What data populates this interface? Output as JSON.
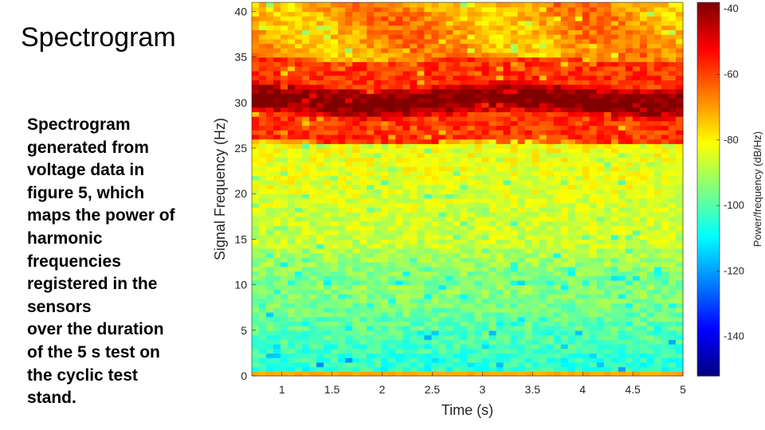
{
  "slide": {
    "title": "Spectrogram",
    "caption_lines": [
      "Spectrogram",
      "generated from",
      "voltage data in",
      "figure 5, which",
      "maps the power of",
      "harmonic",
      "frequencies",
      "registered in the",
      "sensors",
      "over the duration",
      "of the 5 s test on",
      "the cyclic test",
      "stand."
    ]
  },
  "chart_data": {
    "type": "heatmap",
    "title": "",
    "xlabel": "Time (s)",
    "ylabel": "Signal Frequency (Hz)",
    "xlim": [
      0.7,
      5
    ],
    "ylim": [
      0,
      41
    ],
    "xticks": [
      1,
      1.5,
      2,
      2.5,
      3,
      3.5,
      4,
      4.5,
      5
    ],
    "xtick_labels": [
      "1",
      "1.5",
      "2",
      "2.5",
      "3",
      "3.5",
      "4",
      "4.5",
      "5"
    ],
    "yticks": [
      0,
      5,
      10,
      15,
      20,
      25,
      30,
      35,
      40
    ],
    "ytick_labels": [
      "0",
      "5",
      "10",
      "15",
      "20",
      "25",
      "30",
      "35",
      "40"
    ],
    "colorbar": {
      "label": "Power/frequency (dB/Hz)",
      "range": [
        -152,
        -38
      ],
      "ticks": [
        -40,
        -60,
        -80,
        -100,
        -120,
        -140
      ],
      "tick_labels": [
        "-40",
        "-60",
        "-80",
        "-100",
        "-120",
        "-140"
      ],
      "colormap": "jet"
    },
    "features": [
      {
        "description": "dominant band",
        "freq_center_hz": 30.3,
        "power_db": -40
      },
      {
        "description": "broad high-power region",
        "freq_range_hz": [
          26,
          41
        ],
        "power_db": -65
      },
      {
        "description": "mid band",
        "freq_range_hz": [
          14,
          25
        ],
        "power_db": -85
      },
      {
        "description": "low band",
        "freq_range_hz": [
          1,
          10
        ],
        "power_db": -105
      },
      {
        "description": "DC row",
        "freq_range_hz": [
          0,
          0.5
        ],
        "power_db": -75
      }
    ]
  }
}
